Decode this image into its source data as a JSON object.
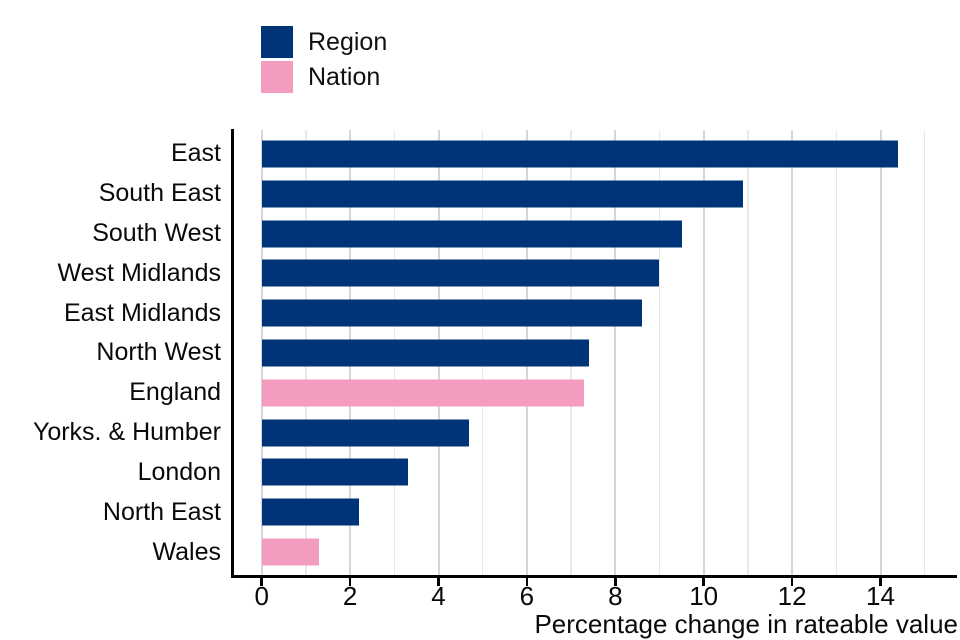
{
  "chart_data": {
    "type": "bar",
    "orientation": "horizontal",
    "title": "",
    "xlabel": "Percentage change in rateable value",
    "ylabel": "",
    "xlim": [
      0,
      15.7
    ],
    "xticks": [
      0,
      2,
      4,
      6,
      8,
      10,
      12,
      14
    ],
    "gridlines": {
      "every": 1,
      "major_every": 2,
      "max": 15
    },
    "legend_position": "top-left",
    "legend": [
      {
        "label": "Region",
        "color": "#003478"
      },
      {
        "label": "Nation",
        "color": "#f39cbf"
      }
    ],
    "categories": [
      "East",
      "South East",
      "South West",
      "West Midlands",
      "East Midlands",
      "North West",
      "England",
      "Yorks. & Humber",
      "London",
      "North East",
      "Wales"
    ],
    "values": [
      14.4,
      10.9,
      9.5,
      9.0,
      8.6,
      7.4,
      7.3,
      4.7,
      3.3,
      2.2,
      1.3
    ],
    "groups": [
      "Region",
      "Region",
      "Region",
      "Region",
      "Region",
      "Region",
      "Nation",
      "Region",
      "Region",
      "Region",
      "Nation"
    ]
  }
}
